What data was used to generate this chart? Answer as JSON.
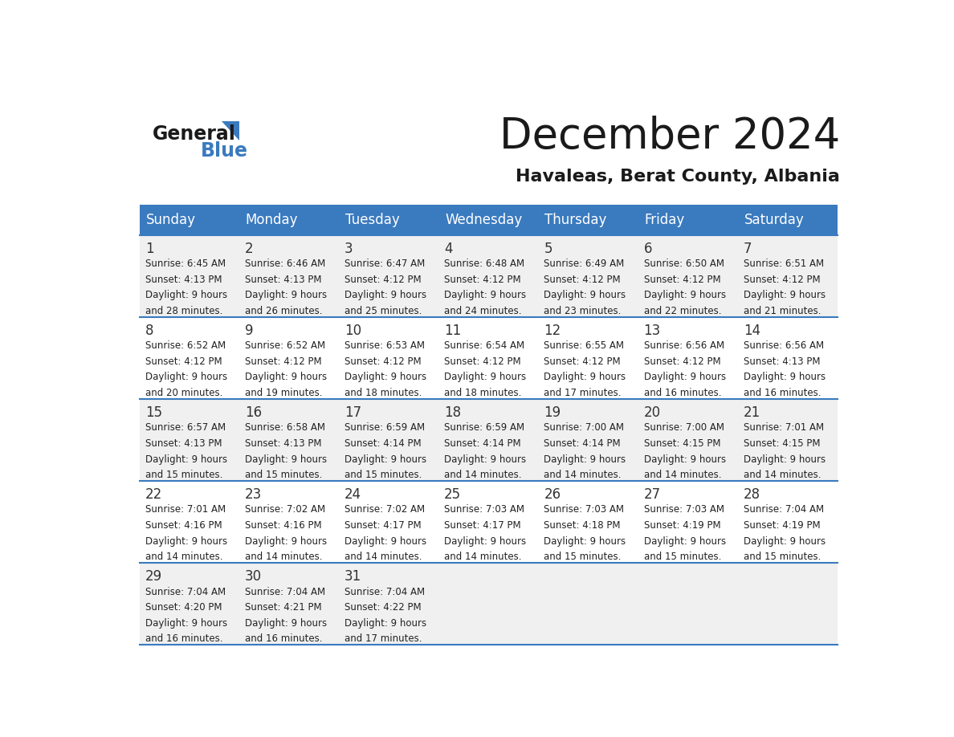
{
  "title": "December 2024",
  "subtitle": "Havaleas, Berat County, Albania",
  "header_color": "#3a7abf",
  "header_text_color": "#ffffff",
  "days_of_week": [
    "Sunday",
    "Monday",
    "Tuesday",
    "Wednesday",
    "Thursday",
    "Friday",
    "Saturday"
  ],
  "separator_color": "#3a7abf",
  "bg_color": "#ffffff",
  "cell_bg_light": "#f0f0f0",
  "cell_bg_white": "#ffffff",
  "text_color": "#222222",
  "day_num_color": "#333333",
  "calendar_data": [
    [
      {
        "day": 1,
        "sunrise": "6:45 AM",
        "sunset": "4:13 PM",
        "daylight": "9 hours and 28 minutes."
      },
      {
        "day": 2,
        "sunrise": "6:46 AM",
        "sunset": "4:13 PM",
        "daylight": "9 hours and 26 minutes."
      },
      {
        "day": 3,
        "sunrise": "6:47 AM",
        "sunset": "4:12 PM",
        "daylight": "9 hours and 25 minutes."
      },
      {
        "day": 4,
        "sunrise": "6:48 AM",
        "sunset": "4:12 PM",
        "daylight": "9 hours and 24 minutes."
      },
      {
        "day": 5,
        "sunrise": "6:49 AM",
        "sunset": "4:12 PM",
        "daylight": "9 hours and 23 minutes."
      },
      {
        "day": 6,
        "sunrise": "6:50 AM",
        "sunset": "4:12 PM",
        "daylight": "9 hours and 22 minutes."
      },
      {
        "day": 7,
        "sunrise": "6:51 AM",
        "sunset": "4:12 PM",
        "daylight": "9 hours and 21 minutes."
      }
    ],
    [
      {
        "day": 8,
        "sunrise": "6:52 AM",
        "sunset": "4:12 PM",
        "daylight": "9 hours and 20 minutes."
      },
      {
        "day": 9,
        "sunrise": "6:52 AM",
        "sunset": "4:12 PM",
        "daylight": "9 hours and 19 minutes."
      },
      {
        "day": 10,
        "sunrise": "6:53 AM",
        "sunset": "4:12 PM",
        "daylight": "9 hours and 18 minutes."
      },
      {
        "day": 11,
        "sunrise": "6:54 AM",
        "sunset": "4:12 PM",
        "daylight": "9 hours and 18 minutes."
      },
      {
        "day": 12,
        "sunrise": "6:55 AM",
        "sunset": "4:12 PM",
        "daylight": "9 hours and 17 minutes."
      },
      {
        "day": 13,
        "sunrise": "6:56 AM",
        "sunset": "4:12 PM",
        "daylight": "9 hours and 16 minutes."
      },
      {
        "day": 14,
        "sunrise": "6:56 AM",
        "sunset": "4:13 PM",
        "daylight": "9 hours and 16 minutes."
      }
    ],
    [
      {
        "day": 15,
        "sunrise": "6:57 AM",
        "sunset": "4:13 PM",
        "daylight": "9 hours and 15 minutes."
      },
      {
        "day": 16,
        "sunrise": "6:58 AM",
        "sunset": "4:13 PM",
        "daylight": "9 hours and 15 minutes."
      },
      {
        "day": 17,
        "sunrise": "6:59 AM",
        "sunset": "4:14 PM",
        "daylight": "9 hours and 15 minutes."
      },
      {
        "day": 18,
        "sunrise": "6:59 AM",
        "sunset": "4:14 PM",
        "daylight": "9 hours and 14 minutes."
      },
      {
        "day": 19,
        "sunrise": "7:00 AM",
        "sunset": "4:14 PM",
        "daylight": "9 hours and 14 minutes."
      },
      {
        "day": 20,
        "sunrise": "7:00 AM",
        "sunset": "4:15 PM",
        "daylight": "9 hours and 14 minutes."
      },
      {
        "day": 21,
        "sunrise": "7:01 AM",
        "sunset": "4:15 PM",
        "daylight": "9 hours and 14 minutes."
      }
    ],
    [
      {
        "day": 22,
        "sunrise": "7:01 AM",
        "sunset": "4:16 PM",
        "daylight": "9 hours and 14 minutes."
      },
      {
        "day": 23,
        "sunrise": "7:02 AM",
        "sunset": "4:16 PM",
        "daylight": "9 hours and 14 minutes."
      },
      {
        "day": 24,
        "sunrise": "7:02 AM",
        "sunset": "4:17 PM",
        "daylight": "9 hours and 14 minutes."
      },
      {
        "day": 25,
        "sunrise": "7:03 AM",
        "sunset": "4:17 PM",
        "daylight": "9 hours and 14 minutes."
      },
      {
        "day": 26,
        "sunrise": "7:03 AM",
        "sunset": "4:18 PM",
        "daylight": "9 hours and 15 minutes."
      },
      {
        "day": 27,
        "sunrise": "7:03 AM",
        "sunset": "4:19 PM",
        "daylight": "9 hours and 15 minutes."
      },
      {
        "day": 28,
        "sunrise": "7:04 AM",
        "sunset": "4:19 PM",
        "daylight": "9 hours and 15 minutes."
      }
    ],
    [
      {
        "day": 29,
        "sunrise": "7:04 AM",
        "sunset": "4:20 PM",
        "daylight": "9 hours and 16 minutes."
      },
      {
        "day": 30,
        "sunrise": "7:04 AM",
        "sunset": "4:21 PM",
        "daylight": "9 hours and 16 minutes."
      },
      {
        "day": 31,
        "sunrise": "7:04 AM",
        "sunset": "4:22 PM",
        "daylight": "9 hours and 17 minutes."
      },
      null,
      null,
      null,
      null
    ]
  ]
}
